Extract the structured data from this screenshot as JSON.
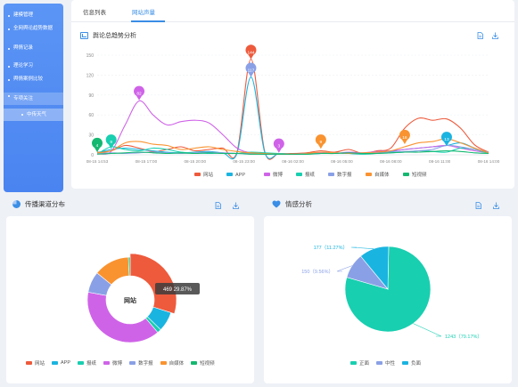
{
  "sidebar": {
    "items": [
      {
        "label": "建模管理"
      },
      {
        "label": "全网舆论趋势数据"
      },
      {
        "label": "舆情记录"
      },
      {
        "label": "理论学习"
      },
      {
        "label": "舆情案例比较"
      },
      {
        "label": "专项关注"
      }
    ],
    "sub_items": [
      {
        "label": "中传天气"
      }
    ]
  },
  "tabs": [
    {
      "label": "信息列表"
    },
    {
      "label": "网站声量"
    }
  ],
  "trend": {
    "title": "舆论总趋势分析",
    "chart_data": {
      "type": "line",
      "x_ticks": [
        "08-15 14:53",
        "08-15 17:00",
        "08-15 20:00",
        "08-15 23:00",
        "08-16 02:00",
        "08-16 05:00",
        "08-16 08:00",
        "08-16 11:00",
        "08-16 14:00"
      ],
      "y_ticks": [
        "0",
        "30",
        "60",
        "90",
        "120",
        "150"
      ],
      "ylim": [
        0,
        150
      ],
      "series": [
        {
          "name": "网站",
          "color": "#ee5a3c",
          "values": [
            4,
            6,
            14,
            10,
            5,
            8,
            12,
            6,
            8,
            10,
            4,
            144,
            4,
            2,
            2,
            3,
            6,
            4,
            8,
            2,
            6,
            10,
            40,
            55,
            52,
            54,
            40,
            15,
            4
          ]
        },
        {
          "name": "APP",
          "color": "#1ab4e0",
          "values": [
            3,
            8,
            10,
            8,
            6,
            4,
            3,
            4,
            5,
            3,
            2,
            117,
            3,
            2,
            1,
            2,
            3,
            2,
            4,
            2,
            3,
            5,
            8,
            10,
            12,
            14,
            18,
            10,
            3
          ]
        },
        {
          "name": "微博",
          "color": "#cf63e8",
          "values": [
            2,
            5,
            45,
            81,
            60,
            45,
            50,
            52,
            48,
            30,
            10,
            3,
            2,
            1,
            1,
            2,
            3,
            2,
            4,
            3,
            5,
            6,
            8,
            10,
            12,
            14,
            10,
            6,
            3
          ]
        },
        {
          "name": "报纸",
          "color": "#18cfb0",
          "values": [
            1,
            12,
            8,
            6,
            10,
            8,
            4,
            3,
            2,
            3,
            2,
            4,
            3,
            2,
            1,
            1,
            2,
            3,
            2,
            1,
            2,
            3,
            4,
            6,
            5,
            4,
            10,
            8,
            2
          ]
        },
        {
          "name": "数字报",
          "color": "#8aa0e6",
          "values": [
            2,
            3,
            2,
            3,
            4,
            3,
            2,
            3,
            4,
            3,
            2,
            2,
            1,
            1,
            1,
            2,
            2,
            3,
            2,
            2,
            3,
            4,
            5,
            6,
            8,
            14,
            12,
            8,
            4
          ]
        },
        {
          "name": "自媒体",
          "color": "#f99330",
          "values": [
            3,
            6,
            18,
            20,
            16,
            14,
            8,
            10,
            12,
            8,
            5,
            3,
            2,
            1,
            1,
            2,
            4,
            3,
            2,
            3,
            4,
            6,
            12,
            18,
            20,
            24,
            18,
            10,
            3
          ]
        },
        {
          "name": "短视频",
          "color": "#14b870",
          "values": [
            1,
            2,
            3,
            4,
            3,
            2,
            3,
            2,
            3,
            2,
            2,
            1,
            1,
            1,
            1,
            1,
            2,
            2,
            3,
            2,
            2,
            3,
            4,
            4,
            5,
            6,
            5,
            3,
            2
          ]
        }
      ],
      "markers": [
        {
          "label": "4",
          "color": "#14b870"
        },
        {
          "label": "9",
          "color": "#18cfb0"
        },
        {
          "label": "82",
          "color": "#cf63e8"
        },
        {
          "label": "144",
          "color": "#ee5a3c"
        },
        {
          "label": "117",
          "color": "#8aa0e6"
        },
        {
          "label": "3",
          "color": "#cf63e8"
        },
        {
          "label": "9",
          "color": "#f99330"
        },
        {
          "label": "16",
          "color": "#f99330"
        },
        {
          "label": "13",
          "color": "#1ab4e0"
        }
      ]
    }
  },
  "spread": {
    "title": "传播渠道分布",
    "center_label": "网站",
    "tooltip": "469  29.87%",
    "chart_data": {
      "type": "pie",
      "slices": [
        {
          "name": "网站",
          "value": 29.87,
          "color": "#ee5a3c"
        },
        {
          "name": "APP",
          "value": 7.5,
          "color": "#1ab4e0"
        },
        {
          "name": "报纸",
          "value": 1.5,
          "color": "#18cfb0"
        },
        {
          "name": "微博",
          "value": 39,
          "color": "#cf63e8"
        },
        {
          "name": "数字报",
          "value": 8,
          "color": "#8aa0e6"
        },
        {
          "name": "自媒体",
          "value": 13.5,
          "color": "#f99330"
        },
        {
          "name": "短视频",
          "value": 0.63,
          "color": "#14b870"
        }
      ]
    }
  },
  "emotion": {
    "title": "情感分析",
    "chart_data": {
      "type": "pie",
      "slices": [
        {
          "name": "正面",
          "value": 1243,
          "label": "1243（79.17%）",
          "color": "#18cfb0"
        },
        {
          "name": "中性",
          "value": 150,
          "label": "150（9.56%）",
          "color": "#8aa0e6"
        },
        {
          "name": "负面",
          "value": 177,
          "label": "177（11.27%）",
          "color": "#1ab4e0"
        }
      ]
    }
  }
}
